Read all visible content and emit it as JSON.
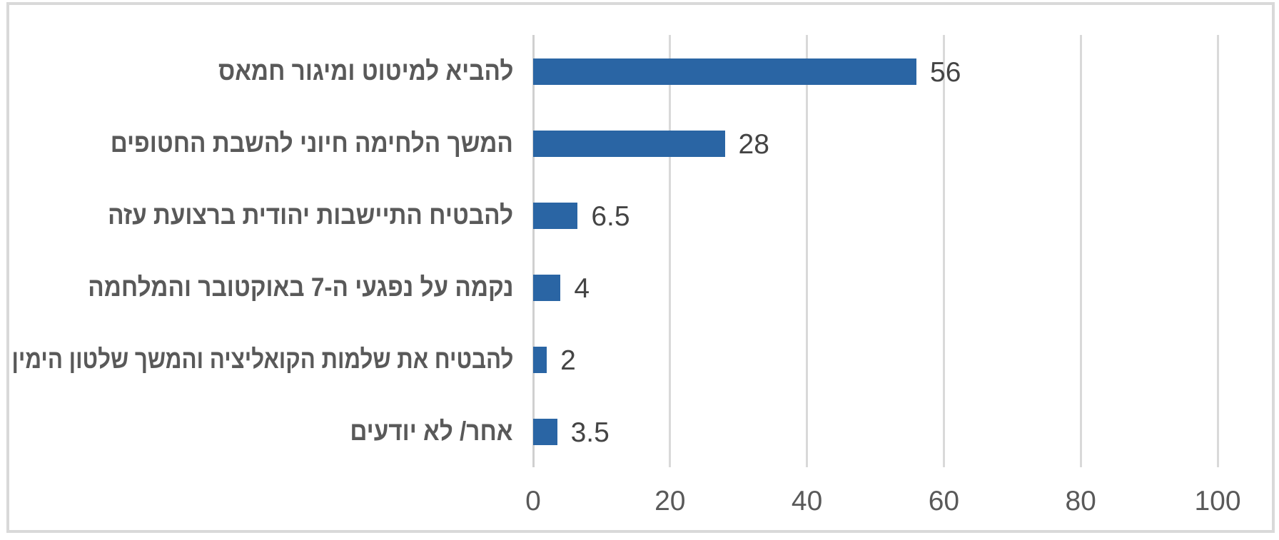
{
  "chart_data": {
    "type": "bar",
    "orientation": "horizontal",
    "title": "",
    "categories": [
      "להביא למיטוט ומיגור חמאס",
      "המשך הלחימה חיוני להשבת החטופים",
      "להבטיח התיישבות יהודית ברצועת עזה",
      "נקמה על נפגעי ה-7 באוקטובר והמלחמה",
      "להבטיח את שלמות הקואליציה והמשך שלטון הימין",
      "אחר/ לא יודעים"
    ],
    "values": [
      56,
      28,
      6.5,
      4,
      2,
      3.5
    ],
    "value_labels": [
      "56",
      "28",
      "6.5",
      "4",
      "2",
      "3.5"
    ],
    "x_ticks": [
      "0",
      "20",
      "40",
      "60",
      "80",
      "100"
    ],
    "xlim": [
      0,
      100
    ],
    "grid": true,
    "legend": false,
    "bar_color": "#2a65a4",
    "grid_color": "#d9d9d9",
    "label_color": "#595959",
    "value_color": "#444444"
  }
}
